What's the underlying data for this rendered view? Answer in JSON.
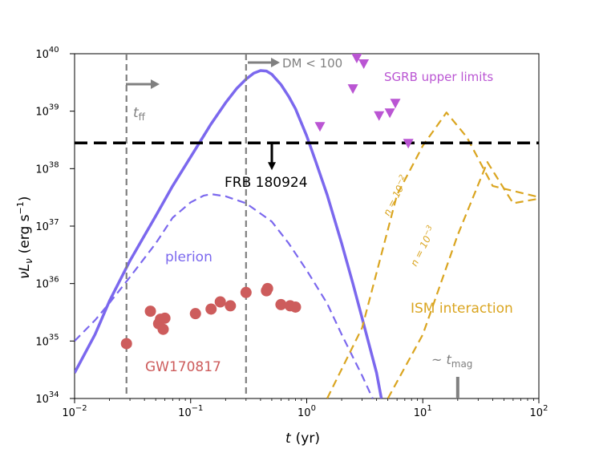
{
  "chart_data": {
    "type": "line",
    "xlabel": "t",
    "xlabel_unit": "(yr)",
    "ylabel_main": "νL",
    "ylabel_sub": "ν",
    "ylabel_unit": "(erg  s",
    "ylabel_unit_exp": "−1",
    "ylabel_unit_close": ")",
    "x_scale": "log",
    "y_scale": "log",
    "xlim": [
      0.01,
      100
    ],
    "ylim": [
      1e+34,
      1e+40
    ],
    "x_ticks": [
      {
        "value": 0.01,
        "base": "10",
        "exp": "−2"
      },
      {
        "value": 0.1,
        "base": "10",
        "exp": "−1"
      },
      {
        "value": 1,
        "base": "10",
        "exp": "0"
      },
      {
        "value": 10,
        "base": "10",
        "exp": "1"
      },
      {
        "value": 100,
        "base": "10",
        "exp": "2"
      }
    ],
    "y_ticks": [
      {
        "value": 1e+34,
        "base": "10",
        "exp": "34"
      },
      {
        "value": 1e+35,
        "base": "10",
        "exp": "35"
      },
      {
        "value": 1e+36,
        "base": "10",
        "exp": "36"
      },
      {
        "value": 1e+37,
        "base": "10",
        "exp": "37"
      },
      {
        "value": 1e+38,
        "base": "10",
        "exp": "38"
      },
      {
        "value": 1e+39,
        "base": "10",
        "exp": "39"
      },
      {
        "value": 1e+40,
        "base": "10",
        "exp": "40"
      }
    ],
    "series": [
      {
        "name": "plerion-solid",
        "style": "solid",
        "color": "#7b68ee",
        "points": [
          [
            0.01,
            2.8e+34
          ],
          [
            0.015,
            1.3e+35
          ],
          [
            0.02,
            5e+35
          ],
          [
            0.03,
            2.5e+36
          ],
          [
            0.05,
            1.5e+37
          ],
          [
            0.07,
            5e+37
          ],
          [
            0.1,
            1.6e+38
          ],
          [
            0.15,
            6e+38
          ],
          [
            0.2,
            1.4e+39
          ],
          [
            0.25,
            2.5e+39
          ],
          [
            0.3,
            3.6e+39
          ],
          [
            0.35,
            4.6e+39
          ],
          [
            0.4,
            5.1e+39
          ],
          [
            0.45,
            5e+39
          ],
          [
            0.5,
            4.4e+39
          ],
          [
            0.6,
            2.9e+39
          ],
          [
            0.7,
            1.8e+39
          ],
          [
            0.8,
            1.1e+39
          ],
          [
            1.0,
            3.7e+38
          ],
          [
            1.2,
            1.3e+38
          ],
          [
            1.5,
            3.5e+37
          ],
          [
            2,
            5e+36
          ],
          [
            2.5,
            1e+36
          ],
          [
            3,
            2.5e+35
          ],
          [
            4,
            2.8e+34
          ],
          [
            4.4,
            1e+34
          ]
        ]
      },
      {
        "name": "plerion-dashed",
        "style": "dashed",
        "color": "#7b68ee",
        "points": [
          [
            0.01,
            1e+35
          ],
          [
            0.015,
            2.3e+35
          ],
          [
            0.02,
            4.6e+35
          ],
          [
            0.03,
            1.3e+36
          ],
          [
            0.05,
            5e+36
          ],
          [
            0.07,
            1.4e+37
          ],
          [
            0.1,
            2.6e+37
          ],
          [
            0.13,
            3.4e+37
          ],
          [
            0.15,
            3.6e+37
          ],
          [
            0.2,
            3.3e+37
          ],
          [
            0.3,
            2.5e+37
          ],
          [
            0.5,
            1.2e+37
          ],
          [
            0.7,
            5e+36
          ],
          [
            1.0,
            1.7e+36
          ],
          [
            1.5,
            4.5e+35
          ],
          [
            2,
            1.3e+35
          ],
          [
            3,
            2.5e+34
          ],
          [
            3.7,
            1e+34
          ]
        ]
      },
      {
        "name": "ism-n-1e-2",
        "style": "dashed",
        "color": "#daa520",
        "points": [
          [
            1.5,
            1e+34
          ],
          [
            3,
            1.7e+35
          ],
          [
            6,
            3.5e+37
          ],
          [
            10,
            2.5e+38
          ],
          [
            16,
            9.5e+38
          ],
          [
            24,
            3.5e+38
          ],
          [
            40,
            5e+37
          ],
          [
            100,
            3.2e+37
          ]
        ]
      },
      {
        "name": "ism-n-1e-3",
        "style": "dashed",
        "color": "#daa520",
        "points": [
          [
            5,
            1e+34
          ],
          [
            10,
            1.3e+35
          ],
          [
            20,
            7e+36
          ],
          [
            36,
            1.3e+38
          ],
          [
            60,
            2.5e+37
          ],
          [
            100,
            3e+37
          ]
        ]
      }
    ],
    "frb_level": 2.8e+38,
    "gw170817_points": [
      [
        0.028,
        9e+34
      ],
      [
        0.045,
        3.3e+35
      ],
      [
        0.053,
        2e+35
      ],
      [
        0.055,
        2.4e+35
      ],
      [
        0.058,
        1.6e+35
      ],
      [
        0.06,
        2.5e+35
      ],
      [
        0.11,
        3e+35
      ],
      [
        0.15,
        3.6e+35
      ],
      [
        0.18,
        4.8e+35
      ],
      [
        0.22,
        4.1e+35
      ],
      [
        0.3,
        7e+35
      ],
      [
        0.45,
        7.5e+35
      ],
      [
        0.46,
        8.2e+35
      ],
      [
        0.6,
        4.3e+35
      ],
      [
        0.72,
        4.1e+35
      ],
      [
        0.8,
        3.9e+35
      ]
    ],
    "sgrb_upper_limits": [
      [
        1.3,
        5.5e+38
      ],
      [
        2.5,
        2.5e+39
      ],
      [
        2.7,
        8.5e+39
      ],
      [
        3.1,
        6.8e+39
      ],
      [
        4.2,
        8.5e+38
      ],
      [
        5.2,
        9.5e+38
      ],
      [
        5.8,
        1.4e+39
      ],
      [
        7.5,
        2.8e+38
      ]
    ],
    "vlines": [
      {
        "name": "t-ff-line",
        "x": 0.028
      },
      {
        "name": "dm-line",
        "x": 0.3
      }
    ],
    "t_mag_tick": 20,
    "annotations": {
      "t_ff_label": "t",
      "t_ff_sub": "ff",
      "dm_label": "DM < 100",
      "sgrb_label": "SGRB upper limits",
      "frb_label": "FRB 180924",
      "plerion_label": "plerion",
      "gw_label": "GW170817",
      "ism_label": "ISM interaction",
      "n1_label": "n = 10",
      "n1_exp": "−2",
      "n2_label": "n = 10",
      "n2_exp": "−3",
      "t_mag_prefix": "~ t",
      "t_mag_sub": "mag"
    },
    "colors": {
      "plerion": "#7b68ee",
      "ism": "#daa520",
      "gw": "#cd5c5c",
      "sgrb": "#ba55d3",
      "frb": "#000000",
      "vline": "#808080"
    }
  }
}
